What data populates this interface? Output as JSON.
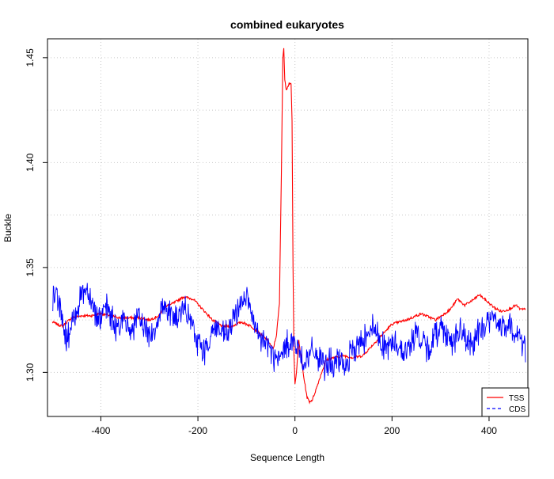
{
  "chart_data": {
    "type": "line",
    "title": "combined eukaryotes",
    "xlabel": "Sequence Length",
    "ylabel": "Buckle",
    "xlim": [
      -510,
      480
    ],
    "ylim": [
      1.279,
      1.459
    ],
    "x_ticks": [
      -400,
      -200,
      0,
      200,
      400
    ],
    "y_ticks": [
      1.3,
      1.35,
      1.4,
      1.45
    ],
    "x_tick_labels": [
      "-400",
      "-200",
      "0",
      "200",
      "400"
    ],
    "y_tick_labels": [
      "1.30",
      "1.35",
      "1.40",
      "1.45"
    ],
    "grid": true,
    "legend": {
      "position": "bottom-right",
      "entries": [
        "TSS",
        "CDS"
      ]
    },
    "series": [
      {
        "name": "TSS",
        "color": "#ff0000",
        "line_style": "solid",
        "x_range": [
          -500,
          475
        ],
        "points": [
          [
            -500,
            1.324
          ],
          [
            -480,
            1.322
          ],
          [
            -460,
            1.326
          ],
          [
            -440,
            1.327
          ],
          [
            -420,
            1.327
          ],
          [
            -400,
            1.328
          ],
          [
            -380,
            1.327
          ],
          [
            -360,
            1.326
          ],
          [
            -340,
            1.326
          ],
          [
            -320,
            1.326
          ],
          [
            -300,
            1.325
          ],
          [
            -280,
            1.327
          ],
          [
            -270,
            1.331
          ],
          [
            -250,
            1.333
          ],
          [
            -230,
            1.336
          ],
          [
            -210,
            1.335
          ],
          [
            -190,
            1.33
          ],
          [
            -170,
            1.325
          ],
          [
            -150,
            1.322
          ],
          [
            -130,
            1.322
          ],
          [
            -110,
            1.324
          ],
          [
            -90,
            1.322
          ],
          [
            -70,
            1.318
          ],
          [
            -55,
            1.315
          ],
          [
            -45,
            1.311
          ],
          [
            -38,
            1.318
          ],
          [
            -32,
            1.333
          ],
          [
            -28,
            1.395
          ],
          [
            -25,
            1.45
          ],
          [
            -23,
            1.454
          ],
          [
            -21,
            1.44
          ],
          [
            -18,
            1.435
          ],
          [
            -15,
            1.436
          ],
          [
            -12,
            1.438
          ],
          [
            -8,
            1.437
          ],
          [
            -6,
            1.42
          ],
          [
            -4,
            1.35
          ],
          [
            -2,
            1.308
          ],
          [
            0,
            1.295
          ],
          [
            3,
            1.3
          ],
          [
            8,
            1.315
          ],
          [
            12,
            1.308
          ],
          [
            18,
            1.298
          ],
          [
            25,
            1.288
          ],
          [
            30,
            1.286
          ],
          [
            36,
            1.287
          ],
          [
            45,
            1.293
          ],
          [
            55,
            1.3
          ],
          [
            65,
            1.306
          ],
          [
            80,
            1.307
          ],
          [
            100,
            1.308
          ],
          [
            120,
            1.307
          ],
          [
            140,
            1.308
          ],
          [
            160,
            1.313
          ],
          [
            180,
            1.318
          ],
          [
            200,
            1.323
          ],
          [
            230,
            1.325
          ],
          [
            260,
            1.328
          ],
          [
            290,
            1.325
          ],
          [
            320,
            1.33
          ],
          [
            335,
            1.335
          ],
          [
            350,
            1.332
          ],
          [
            370,
            1.335
          ],
          [
            380,
            1.337
          ],
          [
            395,
            1.334
          ],
          [
            410,
            1.331
          ],
          [
            425,
            1.329
          ],
          [
            440,
            1.33
          ],
          [
            455,
            1.332
          ],
          [
            465,
            1.33
          ],
          [
            475,
            1.33
          ]
        ]
      },
      {
        "name": "CDS",
        "color": "#0000ff",
        "line_style": "solid",
        "x_range": [
          -500,
          475
        ],
        "noise_amplitude": 0.006,
        "points": [
          [
            -500,
            1.334
          ],
          [
            -490,
            1.338
          ],
          [
            -480,
            1.325
          ],
          [
            -470,
            1.315
          ],
          [
            -460,
            1.322
          ],
          [
            -450,
            1.33
          ],
          [
            -440,
            1.338
          ],
          [
            -430,
            1.34
          ],
          [
            -420,
            1.335
          ],
          [
            -410,
            1.328
          ],
          [
            -400,
            1.326
          ],
          [
            -390,
            1.33
          ],
          [
            -380,
            1.328
          ],
          [
            -370,
            1.32
          ],
          [
            -360,
            1.325
          ],
          [
            -350,
            1.323
          ],
          [
            -340,
            1.32
          ],
          [
            -330,
            1.323
          ],
          [
            -320,
            1.325
          ],
          [
            -310,
            1.322
          ],
          [
            -300,
            1.318
          ],
          [
            -290,
            1.32
          ],
          [
            -280,
            1.328
          ],
          [
            -270,
            1.332
          ],
          [
            -260,
            1.33
          ],
          [
            -250,
            1.326
          ],
          [
            -240,
            1.325
          ],
          [
            -230,
            1.33
          ],
          [
            -220,
            1.327
          ],
          [
            -210,
            1.32
          ],
          [
            -200,
            1.315
          ],
          [
            -190,
            1.31
          ],
          [
            -180,
            1.313
          ],
          [
            -170,
            1.32
          ],
          [
            -160,
            1.322
          ],
          [
            -150,
            1.317
          ],
          [
            -140,
            1.318
          ],
          [
            -130,
            1.323
          ],
          [
            -120,
            1.328
          ],
          [
            -110,
            1.335
          ],
          [
            -100,
            1.336
          ],
          [
            -90,
            1.328
          ],
          [
            -80,
            1.318
          ],
          [
            -70,
            1.315
          ],
          [
            -60,
            1.315
          ],
          [
            -50,
            1.31
          ],
          [
            -40,
            1.306
          ],
          [
            -30,
            1.306
          ],
          [
            -20,
            1.312
          ],
          [
            -10,
            1.316
          ],
          [
            0,
            1.313
          ],
          [
            10,
            1.309
          ],
          [
            20,
            1.305
          ],
          [
            30,
            1.308
          ],
          [
            40,
            1.31
          ],
          [
            50,
            1.306
          ],
          [
            60,
            1.303
          ],
          [
            70,
            1.305
          ],
          [
            80,
            1.303
          ],
          [
            90,
            1.305
          ],
          [
            100,
            1.303
          ],
          [
            110,
            1.306
          ],
          [
            120,
            1.31
          ],
          [
            130,
            1.314
          ],
          [
            140,
            1.315
          ],
          [
            150,
            1.32
          ],
          [
            160,
            1.322
          ],
          [
            170,
            1.318
          ],
          [
            180,
            1.314
          ],
          [
            190,
            1.312
          ],
          [
            200,
            1.313
          ],
          [
            210,
            1.314
          ],
          [
            220,
            1.311
          ],
          [
            230,
            1.31
          ],
          [
            240,
            1.315
          ],
          [
            250,
            1.319
          ],
          [
            260,
            1.315
          ],
          [
            270,
            1.311
          ],
          [
            280,
            1.313
          ],
          [
            290,
            1.318
          ],
          [
            300,
            1.322
          ],
          [
            310,
            1.32
          ],
          [
            320,
            1.315
          ],
          [
            330,
            1.316
          ],
          [
            340,
            1.32
          ],
          [
            350,
            1.316
          ],
          [
            360,
            1.312
          ],
          [
            370,
            1.316
          ],
          [
            380,
            1.319
          ],
          [
            390,
            1.322
          ],
          [
            400,
            1.325
          ],
          [
            410,
            1.326
          ],
          [
            420,
            1.323
          ],
          [
            430,
            1.321
          ],
          [
            440,
            1.322
          ],
          [
            450,
            1.32
          ],
          [
            460,
            1.318
          ],
          [
            470,
            1.313
          ],
          [
            475,
            1.312
          ]
        ]
      }
    ]
  }
}
